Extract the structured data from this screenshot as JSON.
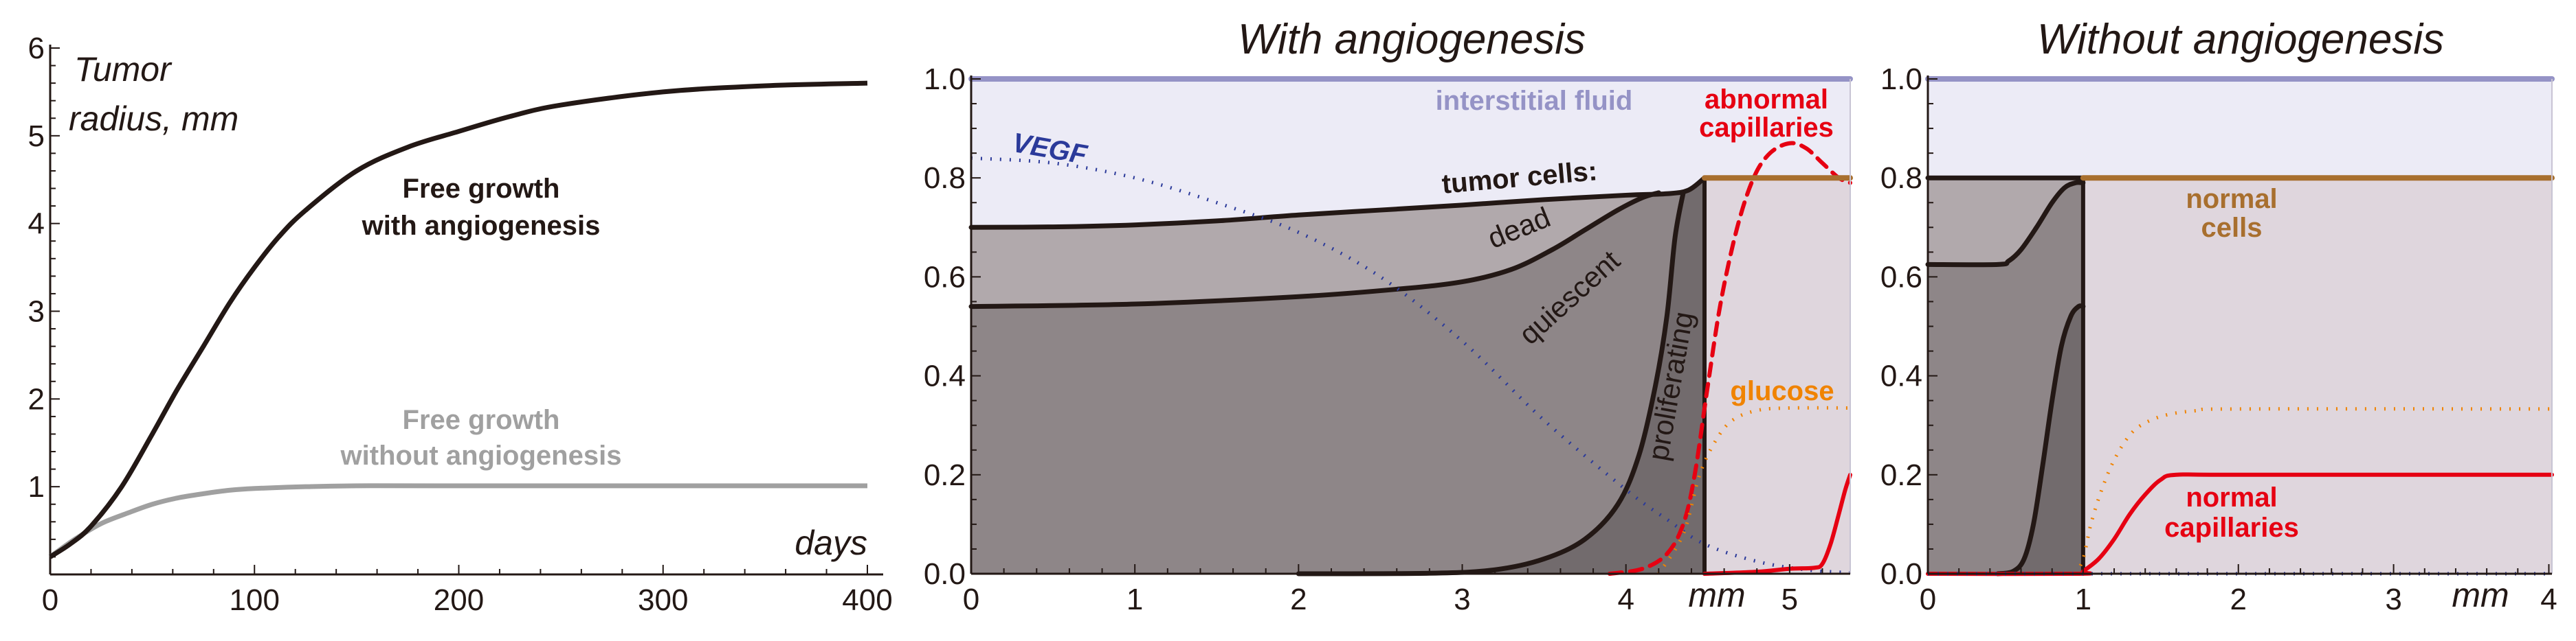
{
  "colors": {
    "axis": "#231815",
    "angio_curve": "#231815",
    "no_angio_curve": "#a0a0a0",
    "interstitial_bg": "#ecebf6",
    "interstitial_line": "#9593c6",
    "normal_tissue": "#dfd6dd",
    "dead": "#b1a9ac",
    "quiescent": "#8e8688",
    "proliferating": "#726b6d",
    "normal_cells": "#a86f2e",
    "capillaries": "#e60012",
    "glucose": "#f08300",
    "vegf": "#2b3a9a"
  },
  "chart_data": [
    {
      "type": "line",
      "title": "",
      "xlabel": "days",
      "ylabel": "Tumor radius, mm",
      "ylabel_lines": [
        "Tumor",
        "radius, mm"
      ],
      "xlim": [
        0,
        400
      ],
      "ylim": [
        0,
        6
      ],
      "xticks": [
        "0",
        "100",
        "200",
        "300",
        "400"
      ],
      "yticks": [
        "1",
        "2",
        "3",
        "4",
        "5",
        "6"
      ],
      "grid": false,
      "series": [
        {
          "name": "Free growth with angiogenesis",
          "name_lines": [
            "Free growth",
            "with angiogenesis"
          ],
          "style": "solid",
          "x": [
            0,
            10,
            20,
            35,
            50,
            62,
            75,
            88,
            100,
            112,
            125,
            150,
            175,
            200,
            225,
            250,
            300,
            350,
            400
          ],
          "y": [
            0.2,
            0.35,
            0.55,
            1.0,
            1.6,
            2.1,
            2.6,
            3.1,
            3.5,
            3.85,
            4.15,
            4.6,
            4.87,
            5.05,
            5.22,
            5.35,
            5.5,
            5.57,
            5.6
          ]
        },
        {
          "name": "Free growth without angiogenesis",
          "name_lines": [
            "Free growth",
            "without angiogenesis"
          ],
          "style": "solid",
          "x": [
            0,
            12,
            25,
            38,
            50,
            62,
            75,
            88,
            100,
            125,
            150,
            200,
            400
          ],
          "y": [
            0.2,
            0.4,
            0.58,
            0.7,
            0.8,
            0.87,
            0.92,
            0.96,
            0.98,
            1.0,
            1.01,
            1.01,
            1.01
          ]
        }
      ]
    },
    {
      "type": "area",
      "title": "With angiogenesis",
      "xlabel": "mm",
      "ylabel": "",
      "xlim": [
        0,
        5.37
      ],
      "ylim": [
        0,
        1
      ],
      "xticks": [
        "0",
        "1",
        "2",
        "3",
        "4",
        "5"
      ],
      "yticks": [
        "0.0",
        "0.2",
        "0.4",
        "0.6",
        "0.8",
        "1.0"
      ],
      "grid": false,
      "tumor_edge": 4.48,
      "labels": {
        "interstitial": "interstitial fluid",
        "abnormal_capillaries": [
          "abnormal",
          "capillaries"
        ],
        "vegf": "VEGF",
        "tumor_cells": "tumor cells:",
        "dead": "dead",
        "quiescent": "quiescent",
        "proliferating": "proliferating",
        "glucose": "glucose"
      },
      "series": [
        {
          "name": "interstitial fluid",
          "style": "solid",
          "x": [
            0,
            5.37
          ],
          "y": [
            1.0,
            1.0
          ]
        },
        {
          "name": "tumor cells",
          "role": "tumor-top",
          "style": "solid",
          "x": [
            0,
            0.5,
            1,
            1.5,
            2,
            2.5,
            3,
            3.5,
            4,
            4.25,
            4.38,
            4.48
          ],
          "y": [
            0.7,
            0.701,
            0.705,
            0.713,
            0.725,
            0.735,
            0.745,
            0.756,
            0.765,
            0.768,
            0.775,
            0.8
          ]
        },
        {
          "name": "dead",
          "role": "dead-quiescent-boundary",
          "style": "solid",
          "x": [
            0,
            1,
            2,
            2.6,
            3,
            3.3,
            3.55,
            3.75,
            3.95,
            4.1,
            4.2
          ],
          "y": [
            0.54,
            0.545,
            0.56,
            0.575,
            0.59,
            0.615,
            0.655,
            0.695,
            0.735,
            0.76,
            0.77
          ]
        },
        {
          "name": "quiescent",
          "role": "quiescent-proliferating-boundary",
          "style": "solid",
          "x": [
            2.0,
            2.8,
            3.2,
            3.5,
            3.75,
            3.95,
            4.08,
            4.18,
            4.25,
            4.3,
            4.35
          ],
          "y": [
            0.0,
            0.001,
            0.008,
            0.03,
            0.07,
            0.14,
            0.24,
            0.38,
            0.52,
            0.68,
            0.77
          ]
        },
        {
          "name": "proliferating",
          "role": "tumor-edge",
          "style": "solid",
          "x": [
            4.48,
            4.48
          ],
          "y": [
            0,
            0.8
          ]
        },
        {
          "name": "VEGF",
          "style": "dotted",
          "x": [
            0,
            0.5,
            1,
            1.5,
            2,
            2.5,
            3,
            3.5,
            4,
            4.25,
            4.48,
            4.8,
            5.1,
            5.37
          ],
          "y": [
            0.84,
            0.83,
            0.8,
            0.75,
            0.69,
            0.6,
            0.47,
            0.31,
            0.17,
            0.11,
            0.06,
            0.025,
            0.008,
            0.002
          ]
        },
        {
          "name": "abnormal capillaries",
          "style": "dashed",
          "x": [
            3.9,
            4.1,
            4.25,
            4.35,
            4.42,
            4.5,
            4.58,
            4.68,
            4.78,
            4.88,
            5.0,
            5.1,
            5.2,
            5.3,
            5.37
          ],
          "y": [
            0.0,
            0.01,
            0.04,
            0.1,
            0.2,
            0.38,
            0.55,
            0.7,
            0.8,
            0.85,
            0.87,
            0.86,
            0.83,
            0.8,
            0.79
          ]
        },
        {
          "name": "glucose",
          "style": "dotted",
          "x": [
            4.2,
            4.35,
            4.45,
            4.55,
            4.65,
            4.8,
            5.0,
            5.37
          ],
          "y": [
            0.0,
            0.08,
            0.2,
            0.27,
            0.31,
            0.33,
            0.335,
            0.335
          ]
        },
        {
          "name": "normal cells",
          "style": "solid",
          "x": [
            4.48,
            5.37
          ],
          "y": [
            0.8,
            0.8
          ]
        },
        {
          "name": "normal capillaries",
          "style": "solid",
          "x": [
            4.48,
            4.8,
            5.0,
            5.15,
            5.2,
            5.25,
            5.3,
            5.34,
            5.37
          ],
          "y": [
            0.0,
            0.004,
            0.01,
            0.012,
            0.02,
            0.06,
            0.12,
            0.17,
            0.2
          ]
        }
      ]
    },
    {
      "type": "area",
      "title": "Without angiogenesis",
      "xlabel": "mm",
      "ylabel": "",
      "xlim": [
        0,
        4.02
      ],
      "ylim": [
        0,
        1
      ],
      "xticks": [
        "0",
        "1",
        "2",
        "3",
        "4"
      ],
      "yticks": [
        "0.0",
        "0.2",
        "0.4",
        "0.6",
        "0.8",
        "1.0"
      ],
      "grid": false,
      "tumor_edge": 1.0,
      "labels": {
        "normal_cells": [
          "normal",
          "cells"
        ],
        "normal_capillaries": [
          "normal",
          "capillaries"
        ]
      },
      "series": [
        {
          "role": "interstitial",
          "style": "solid",
          "x": [
            0,
            4.02
          ],
          "y": [
            1.0,
            1.0
          ]
        },
        {
          "role": "tumor-top",
          "style": "solid",
          "x": [
            0,
            0.5,
            1.0
          ],
          "y": [
            0.8,
            0.8,
            0.8
          ]
        },
        {
          "role": "dead-quiescent-boundary",
          "style": "solid",
          "x": [
            0,
            0.45,
            0.52,
            0.6,
            0.7,
            0.8,
            0.88,
            0.95,
            1.0
          ],
          "y": [
            0.625,
            0.625,
            0.632,
            0.655,
            0.7,
            0.75,
            0.78,
            0.79,
            0.79
          ]
        },
        {
          "role": "quiescent-proliferating-boundary",
          "style": "solid",
          "x": [
            0.45,
            0.55,
            0.62,
            0.68,
            0.74,
            0.8,
            0.86,
            0.92,
            0.97,
            1.0
          ],
          "y": [
            0.0,
            0.005,
            0.03,
            0.1,
            0.22,
            0.35,
            0.46,
            0.52,
            0.54,
            0.54
          ]
        },
        {
          "role": "tumor-edge",
          "style": "solid",
          "x": [
            1.0,
            1.0
          ],
          "y": [
            0,
            0.8
          ]
        },
        {
          "name": "glucose",
          "style": "dotted",
          "x": [
            0.95,
            1.0,
            1.05,
            1.12,
            1.2,
            1.3,
            1.4,
            1.55,
            1.75,
            2.0,
            4.02
          ],
          "y": [
            0.0,
            0.03,
            0.1,
            0.17,
            0.23,
            0.28,
            0.305,
            0.322,
            0.33,
            0.333,
            0.333
          ]
        },
        {
          "name": "normal cells",
          "style": "solid",
          "x": [
            1.0,
            4.02
          ],
          "y": [
            0.8,
            0.8
          ]
        },
        {
          "name": "normal capillaries",
          "style": "solid",
          "x": [
            0,
            0.97,
            1.0,
            1.1,
            1.2,
            1.3,
            1.4,
            1.5,
            1.6,
            2.0,
            4.02
          ],
          "y": [
            0,
            0,
            0.005,
            0.03,
            0.07,
            0.12,
            0.16,
            0.19,
            0.2,
            0.2,
            0.2
          ]
        },
        {
          "role": "vegf",
          "style": "dotted",
          "x": [
            0,
            4.02
          ],
          "y": [
            0,
            0
          ]
        }
      ]
    }
  ]
}
